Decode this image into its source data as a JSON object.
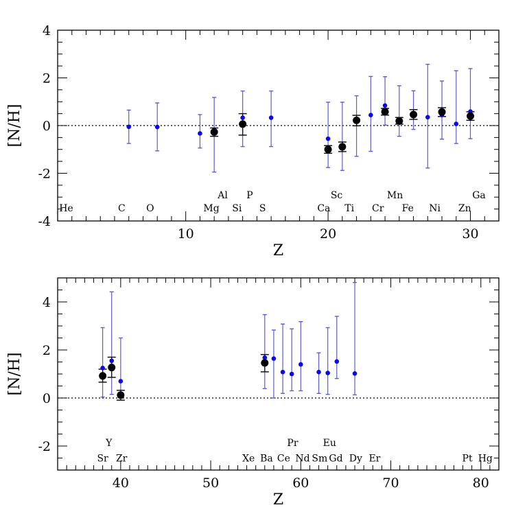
{
  "colors": {
    "blue": "#0a0ae6",
    "blue_err": "#5b5bd6",
    "black": "#000000"
  },
  "chart_data": [
    {
      "type": "scatter",
      "title": "",
      "xlabel": "Z",
      "ylabel": "[N/H]",
      "xlim": [
        1,
        32
      ],
      "ylim": [
        -4,
        4
      ],
      "xticks": [
        10,
        20,
        30
      ],
      "yticks": [
        -4,
        -2,
        0,
        2,
        4
      ],
      "reference_line": 0,
      "series": [
        {
          "name": "blue",
          "points": [
            {
              "z": 6,
              "y": -0.05,
              "lo": -0.75,
              "hi": 0.65
            },
            {
              "z": 8,
              "y": -0.06,
              "lo": -1.06,
              "hi": 0.95
            },
            {
              "z": 11,
              "y": -0.33,
              "lo": -0.94,
              "hi": 0.46
            },
            {
              "z": 12,
              "y": -0.2,
              "lo": -1.95,
              "hi": 1.18
            },
            {
              "z": 14,
              "y": 0.33,
              "lo": -0.88,
              "hi": 1.45
            },
            {
              "z": 16,
              "y": 0.33,
              "lo": -0.88,
              "hi": 1.45
            },
            {
              "z": 20,
              "y": -0.55,
              "lo": -1.76,
              "hi": 0.98
            },
            {
              "z": 21,
              "y": -0.9,
              "lo": -1.88,
              "hi": 0.98
            },
            {
              "z": 22,
              "y": 0.22,
              "lo": -1.29,
              "hi": 1.25
            },
            {
              "z": 23,
              "y": 0.44,
              "lo": -1.08,
              "hi": 2.06
            },
            {
              "z": 24,
              "y": 0.84,
              "lo": 0.02,
              "hi": 2.05
            },
            {
              "z": 25,
              "y": 0.19,
              "lo": -0.45,
              "hi": 1.67
            },
            {
              "z": 26,
              "y": 0.46,
              "lo": -0.16,
              "hi": 1.46
            },
            {
              "z": 27,
              "y": 0.35,
              "lo": -1.78,
              "hi": 2.57
            },
            {
              "z": 28,
              "y": 0.44,
              "lo": -0.57,
              "hi": 1.87
            },
            {
              "z": 29,
              "y": 0.07,
              "lo": -0.75,
              "hi": 2.3
            },
            {
              "z": 30,
              "y": 0.59,
              "lo": -0.55,
              "hi": 2.39
            }
          ]
        },
        {
          "name": "black",
          "points": [
            {
              "z": 12,
              "y": -0.27,
              "lo": -0.45,
              "hi": -0.1
            },
            {
              "z": 14,
              "y": 0.06,
              "lo": -0.4,
              "hi": 0.5
            },
            {
              "z": 20,
              "y": -1.0,
              "lo": -1.16,
              "hi": -0.84
            },
            {
              "z": 21,
              "y": -0.89,
              "lo": -1.09,
              "hi": -0.69
            },
            {
              "z": 22,
              "y": 0.22,
              "lo": -0.01,
              "hi": 0.43
            },
            {
              "z": 24,
              "y": 0.58,
              "lo": 0.44,
              "hi": 0.72
            },
            {
              "z": 25,
              "y": 0.19,
              "lo": 0.06,
              "hi": 0.34
            },
            {
              "z": 26,
              "y": 0.46,
              "lo": 0.26,
              "hi": 0.67
            },
            {
              "z": 28,
              "y": 0.57,
              "lo": 0.38,
              "hi": 0.75
            },
            {
              "z": 30,
              "y": 0.4,
              "lo": 0.22,
              "hi": 0.58
            }
          ]
        }
      ],
      "annotations": [
        {
          "text": "He",
          "x": 1.6,
          "y": -3.45
        },
        {
          "text": "C",
          "x": 5.5,
          "y": -3.45
        },
        {
          "text": "O",
          "x": 7.5,
          "y": -3.45
        },
        {
          "text": "Mg",
          "x": 11.8,
          "y": -3.45
        },
        {
          "text": "Al",
          "x": 12.6,
          "y": -2.9
        },
        {
          "text": "Si",
          "x": 13.6,
          "y": -3.45
        },
        {
          "text": "P",
          "x": 14.5,
          "y": -2.9
        },
        {
          "text": "S",
          "x": 15.4,
          "y": -3.45
        },
        {
          "text": "Ca",
          "x": 19.7,
          "y": -3.45
        },
        {
          "text": "Sc",
          "x": 20.6,
          "y": -2.9
        },
        {
          "text": "Ti",
          "x": 21.5,
          "y": -3.45
        },
        {
          "text": "Cr",
          "x": 23.5,
          "y": -3.45
        },
        {
          "text": "Mn",
          "x": 24.7,
          "y": -2.9
        },
        {
          "text": "Fe",
          "x": 25.6,
          "y": -3.45
        },
        {
          "text": "Ni",
          "x": 27.5,
          "y": -3.45
        },
        {
          "text": "Zn",
          "x": 29.6,
          "y": -3.45
        },
        {
          "text": "Ga",
          "x": 30.6,
          "y": -2.9
        }
      ]
    },
    {
      "type": "scatter",
      "title": "",
      "xlabel": "Z",
      "ylabel": "[N/H]",
      "xlim": [
        33,
        82
      ],
      "ylim": [
        -3,
        5
      ],
      "xticks": [
        40,
        50,
        60,
        70,
        80
      ],
      "yticks": [
        -2,
        0,
        2,
        4
      ],
      "reference_line": 0,
      "series": [
        {
          "name": "blue",
          "points": [
            {
              "z": 38,
              "y": 1.25,
              "lo": 0.04,
              "hi": 2.93
            },
            {
              "z": 39,
              "y": 1.55,
              "lo": 0.15,
              "hi": 4.42
            },
            {
              "z": 40,
              "y": 0.7,
              "lo": 0.0,
              "hi": 2.5
            },
            {
              "z": 56,
              "y": 1.68,
              "lo": 0.39,
              "hi": 3.47
            },
            {
              "z": 57,
              "y": 1.64,
              "lo": 0.0,
              "hi": 2.83
            },
            {
              "z": 58,
              "y": 1.08,
              "lo": 0.19,
              "hi": 3.08
            },
            {
              "z": 59,
              "y": 1.0,
              "lo": 0.3,
              "hi": 2.88
            },
            {
              "z": 60,
              "y": 1.4,
              "lo": 0.3,
              "hi": 3.18
            },
            {
              "z": 62,
              "y": 1.08,
              "lo": 0.19,
              "hi": 1.88
            },
            {
              "z": 63,
              "y": 1.04,
              "lo": 0.15,
              "hi": 2.93
            },
            {
              "z": 64,
              "y": 1.52,
              "lo": 0.81,
              "hi": 3.4
            },
            {
              "z": 66,
              "y": 1.02,
              "lo": 0.13,
              "hi": 4.81
            }
          ]
        },
        {
          "name": "black",
          "points": [
            {
              "z": 38,
              "y": 0.92,
              "lo": 0.66,
              "hi": 1.2
            },
            {
              "z": 39,
              "y": 1.27,
              "lo": 0.86,
              "hi": 1.7
            },
            {
              "z": 40,
              "y": 0.12,
              "lo": -0.09,
              "hi": 0.32
            },
            {
              "z": 56,
              "y": 1.46,
              "lo": 1.09,
              "hi": 1.81
            }
          ]
        }
      ],
      "annotations": [
        {
          "text": "Y",
          "x": 38.7,
          "y": -1.85
        },
        {
          "text": "Sr",
          "x": 38.0,
          "y": -2.5
        },
        {
          "text": "Zr",
          "x": 40.1,
          "y": -2.5
        },
        {
          "text": "Xe",
          "x": 54.2,
          "y": -2.5
        },
        {
          "text": "Ba",
          "x": 56.2,
          "y": -2.5
        },
        {
          "text": "Ce",
          "x": 58.1,
          "y": -2.5
        },
        {
          "text": "Pr",
          "x": 59.1,
          "y": -1.85
        },
        {
          "text": "Nd",
          "x": 60.2,
          "y": -2.5
        },
        {
          "text": "Sm",
          "x": 62.1,
          "y": -2.5
        },
        {
          "text": "Eu",
          "x": 63.2,
          "y": -1.85
        },
        {
          "text": "Gd",
          "x": 63.9,
          "y": -2.5
        },
        {
          "text": "Dy",
          "x": 66.1,
          "y": -2.5
        },
        {
          "text": "Er",
          "x": 68.2,
          "y": -2.5
        },
        {
          "text": "Pt",
          "x": 78.5,
          "y": -2.5
        },
        {
          "text": "Hg",
          "x": 80.5,
          "y": -2.5
        }
      ]
    }
  ]
}
